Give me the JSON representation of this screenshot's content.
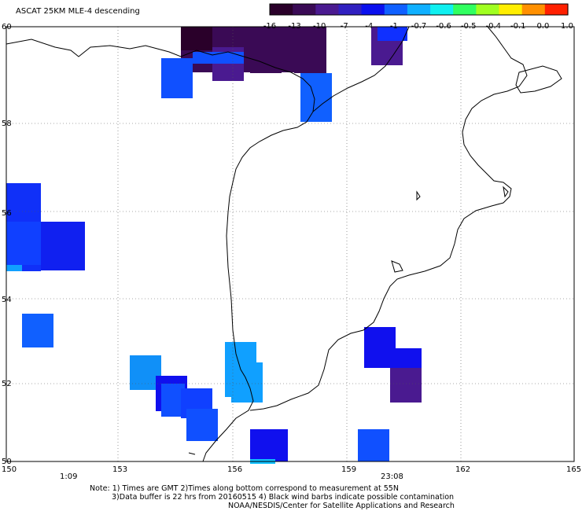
{
  "title": "ASCAT 25KM MLE-4 descending",
  "colorbar": {
    "labels": [
      "-16",
      "-13",
      "-10",
      "-7",
      "-4",
      "-1",
      "-0.7",
      "-0.6",
      "-0.5",
      "-0.4",
      "-0.1",
      "0.0",
      "1.0"
    ],
    "colors": [
      "#2a002a",
      "#3a0a55",
      "#4a1a90",
      "#3020c0",
      "#0a10ee",
      "#1060ff",
      "#10b0ff",
      "#10f0f0",
      "#30ff60",
      "#a0ff20",
      "#ffee00",
      "#ff9000",
      "#ff2000"
    ]
  },
  "axes": {
    "lon_ticks": [
      "150",
      "153",
      "156",
      "159",
      "162",
      "165"
    ],
    "lat_ticks": [
      "60",
      "58",
      "56",
      "54",
      "52",
      "50"
    ]
  },
  "time_labels": [
    {
      "text": "1:09",
      "color": "#cc2200"
    },
    {
      "text": "23:08",
      "color": "#cc2200"
    }
  ],
  "notes": {
    "line1": "Note: 1) Times are GMT 2)Times along bottom correspond to measurement at 55N",
    "line2": "3)Data buffer is 22 hrs from 20160515 4) Black wind barbs indicate possible contamination",
    "line3": "NOAA/NESDIS/Center for Satellite Applications and Research"
  }
}
